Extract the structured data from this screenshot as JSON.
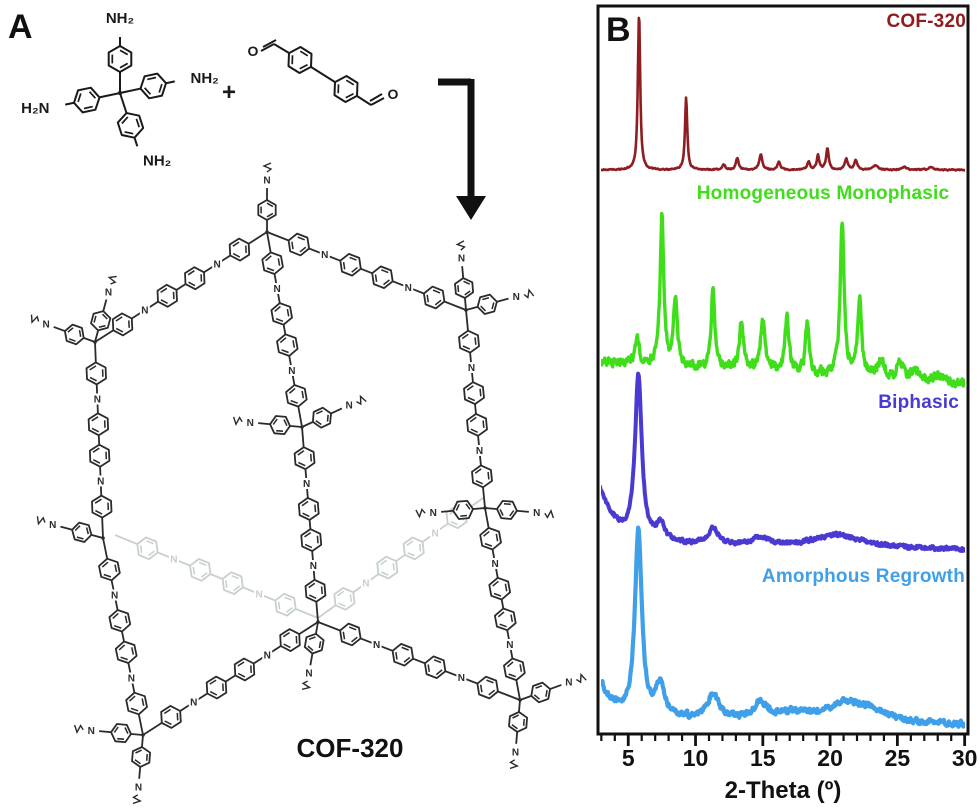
{
  "panel_a": {
    "panel_label": "A",
    "plus_sign": "+",
    "amine_top": "NH₂",
    "amine_right": "NH₂",
    "amine_left": "H₂N",
    "amine_bottom": "NH₂",
    "aldehyde_o": "O",
    "imine_n": "N",
    "product_label": "COF-320"
  },
  "panel_b": {
    "panel_label": "B"
  },
  "chart_data": {
    "type": "line",
    "chart_kind": "stacked powder X-ray diffraction patterns",
    "title": "",
    "xlabel": "2-Theta (º)",
    "ylabel": "",
    "xlim": [
      2.9,
      30.2
    ],
    "x_ticks": [
      5,
      10,
      15,
      20,
      25,
      30
    ],
    "x_minor_tick_step": 1,
    "grid": false,
    "legend_position": "inline-labels-on-traces",
    "series": [
      {
        "name": "COF-320",
        "color": "#8f1c21",
        "peaks_2theta_h_w": [
          [
            5.8,
            1.0,
            0.1
          ],
          [
            9.3,
            0.46,
            0.1
          ],
          [
            12.1,
            0.03,
            0.15
          ],
          [
            13.1,
            0.07,
            0.13
          ],
          [
            14.85,
            0.1,
            0.13
          ],
          [
            16.2,
            0.05,
            0.13
          ],
          [
            18.4,
            0.05,
            0.13
          ],
          [
            19.1,
            0.09,
            0.11
          ],
          [
            19.8,
            0.14,
            0.11
          ],
          [
            21.2,
            0.07,
            0.13
          ],
          [
            21.9,
            0.06,
            0.13
          ],
          [
            23.4,
            0.03,
            0.2
          ],
          [
            25.5,
            0.02,
            0.2
          ],
          [
            27.5,
            0.015,
            0.25
          ]
        ],
        "noise": 0.004
      },
      {
        "name": "Homogeneous Monophasic",
        "color": "#3fdd1a",
        "peaks_2theta_h_w": [
          [
            5.65,
            0.16,
            0.18
          ],
          [
            7.5,
            0.97,
            0.16
          ],
          [
            8.5,
            0.46,
            0.16
          ],
          [
            11.3,
            0.55,
            0.15
          ],
          [
            13.4,
            0.3,
            0.18
          ],
          [
            15.0,
            0.32,
            0.22
          ],
          [
            16.8,
            0.36,
            0.18
          ],
          [
            18.3,
            0.33,
            0.16
          ],
          [
            20.9,
            1.0,
            0.18
          ],
          [
            22.2,
            0.5,
            0.17
          ],
          [
            23.8,
            0.13,
            0.25
          ],
          [
            25.2,
            0.12,
            0.25
          ],
          [
            26.3,
            0.08,
            0.3
          ],
          [
            28.0,
            0.05,
            0.35
          ]
        ],
        "noise": 0.03
      },
      {
        "name": "Biphasic",
        "color": "#4a3ad2",
        "peaks_2theta_h_w": [
          [
            2.5,
            0.38,
            1.2
          ],
          [
            5.75,
            1.0,
            0.3
          ],
          [
            7.4,
            0.1,
            0.4
          ],
          [
            11.3,
            0.1,
            0.45
          ],
          [
            14.8,
            0.05,
            0.8
          ],
          [
            20.6,
            0.08,
            2.2
          ]
        ],
        "noise": 0.012
      },
      {
        "name": "Amorphous Regrowth",
        "color": "#3f9fe8",
        "peaks_2theta_h_w": [
          [
            2.5,
            0.22,
            1.0
          ],
          [
            5.75,
            1.0,
            0.3
          ],
          [
            7.35,
            0.16,
            0.4
          ],
          [
            11.3,
            0.13,
            0.5
          ],
          [
            14.8,
            0.09,
            0.6
          ],
          [
            17.3,
            0.04,
            1.2
          ],
          [
            21.2,
            0.1,
            1.6
          ],
          [
            23.2,
            0.05,
            1.2
          ]
        ],
        "noise": 0.016
      }
    ]
  }
}
